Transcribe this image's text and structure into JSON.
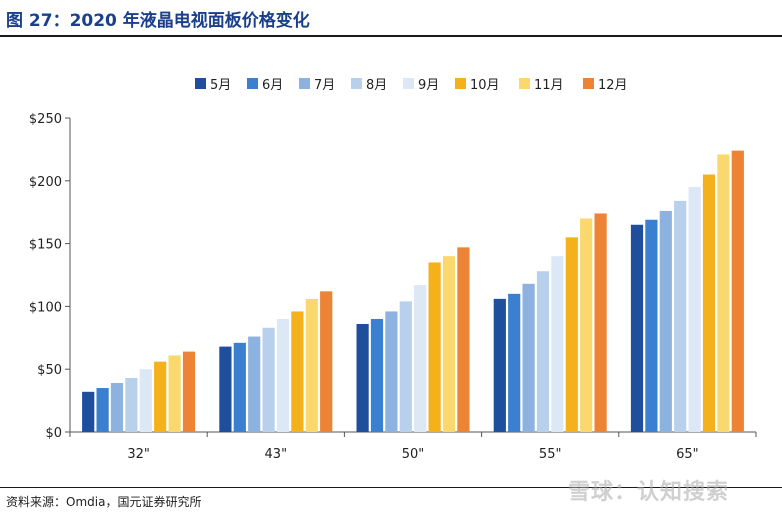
{
  "header": {
    "title": "图 27：2020 年液晶电视面板价格变化"
  },
  "footer": {
    "source": "资料来源：Omdia，国元证券研究所",
    "watermark": "雪球：认知搜索"
  },
  "chart_data": {
    "type": "bar",
    "title": "",
    "xlabel": "",
    "ylabel": "",
    "categories": [
      "32\"",
      "43\"",
      "50\"",
      "55\"",
      "65\""
    ],
    "ylim": [
      0,
      250
    ],
    "yticks": [
      0,
      50,
      100,
      150,
      200,
      250
    ],
    "ytick_labels": [
      "$0",
      "$50",
      "$100",
      "$150",
      "$200",
      "$250"
    ],
    "grid": false,
    "legend_position": "top",
    "series": [
      {
        "name": "5月",
        "color": "#1f4e9c",
        "values": [
          32,
          68,
          86,
          106,
          165
        ]
      },
      {
        "name": "6月",
        "color": "#3a7fd0",
        "values": [
          35,
          71,
          90,
          110,
          169
        ]
      },
      {
        "name": "7月",
        "color": "#8db2e0",
        "values": [
          39,
          76,
          96,
          118,
          176
        ]
      },
      {
        "name": "8月",
        "color": "#b9d0ed",
        "values": [
          43,
          83,
          104,
          128,
          184
        ]
      },
      {
        "name": "9月",
        "color": "#dce8f6",
        "values": [
          50,
          90,
          117,
          140,
          195
        ]
      },
      {
        "name": "10月",
        "color": "#f5b11b",
        "values": [
          56,
          96,
          135,
          155,
          205
        ]
      },
      {
        "name": "11月",
        "color": "#fad86e",
        "values": [
          61,
          106,
          140,
          170,
          221
        ]
      },
      {
        "name": "12月",
        "color": "#ec8335",
        "values": [
          64,
          112,
          147,
          174,
          224
        ]
      }
    ]
  }
}
